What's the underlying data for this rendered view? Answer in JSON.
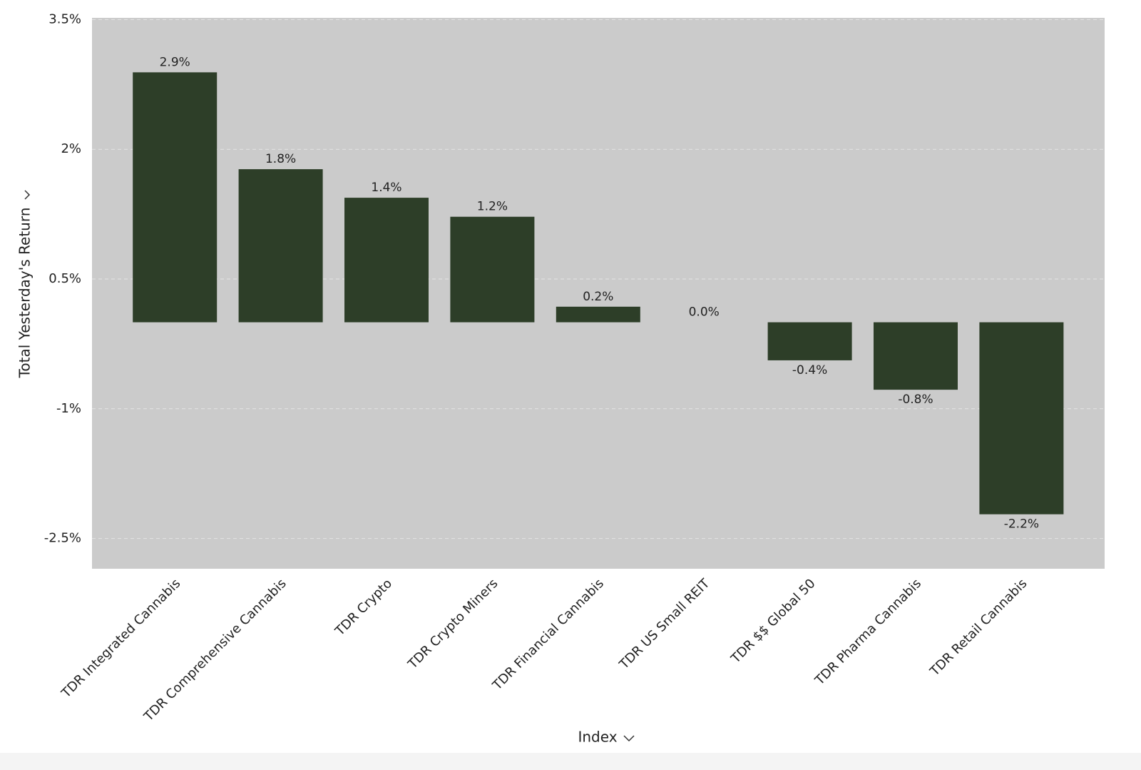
{
  "chart_data": {
    "type": "bar",
    "y_label": "Total Yesterday's Return",
    "x_label": "Index",
    "categories": [
      "TDR Integrated Cannabis",
      "TDR Comprehensive Cannabis",
      "TDR Crypto",
      "TDR Crypto Miners",
      "TDR Financial Cannabis",
      "TDR US Small REIT",
      "TDR $$ Global 50",
      "TDR Pharma Cannabis",
      "TDR Retail Cannabis"
    ],
    "values": [
      2.89,
      1.77,
      1.44,
      1.22,
      0.18,
      0,
      -0.44,
      -0.78,
      -2.22
    ],
    "value_labels": [
      "2.9%",
      "1.8%",
      "1.4%",
      "1.2%",
      "0.2%",
      "0.0%",
      "-0.4%",
      "-0.8%",
      "-2.2%"
    ],
    "color": "#2d3e28",
    "ylim": [
      -2.85,
      3.52
    ],
    "yticks": [
      {
        "value": -2.5,
        "label": "-2.5%"
      },
      {
        "value": -1,
        "label": "-1%"
      },
      {
        "value": 0.5,
        "label": "0.5%"
      },
      {
        "value": 2,
        "label": "2%"
      },
      {
        "value": 3.5,
        "label": "3.5%"
      }
    ],
    "grid": true
  }
}
